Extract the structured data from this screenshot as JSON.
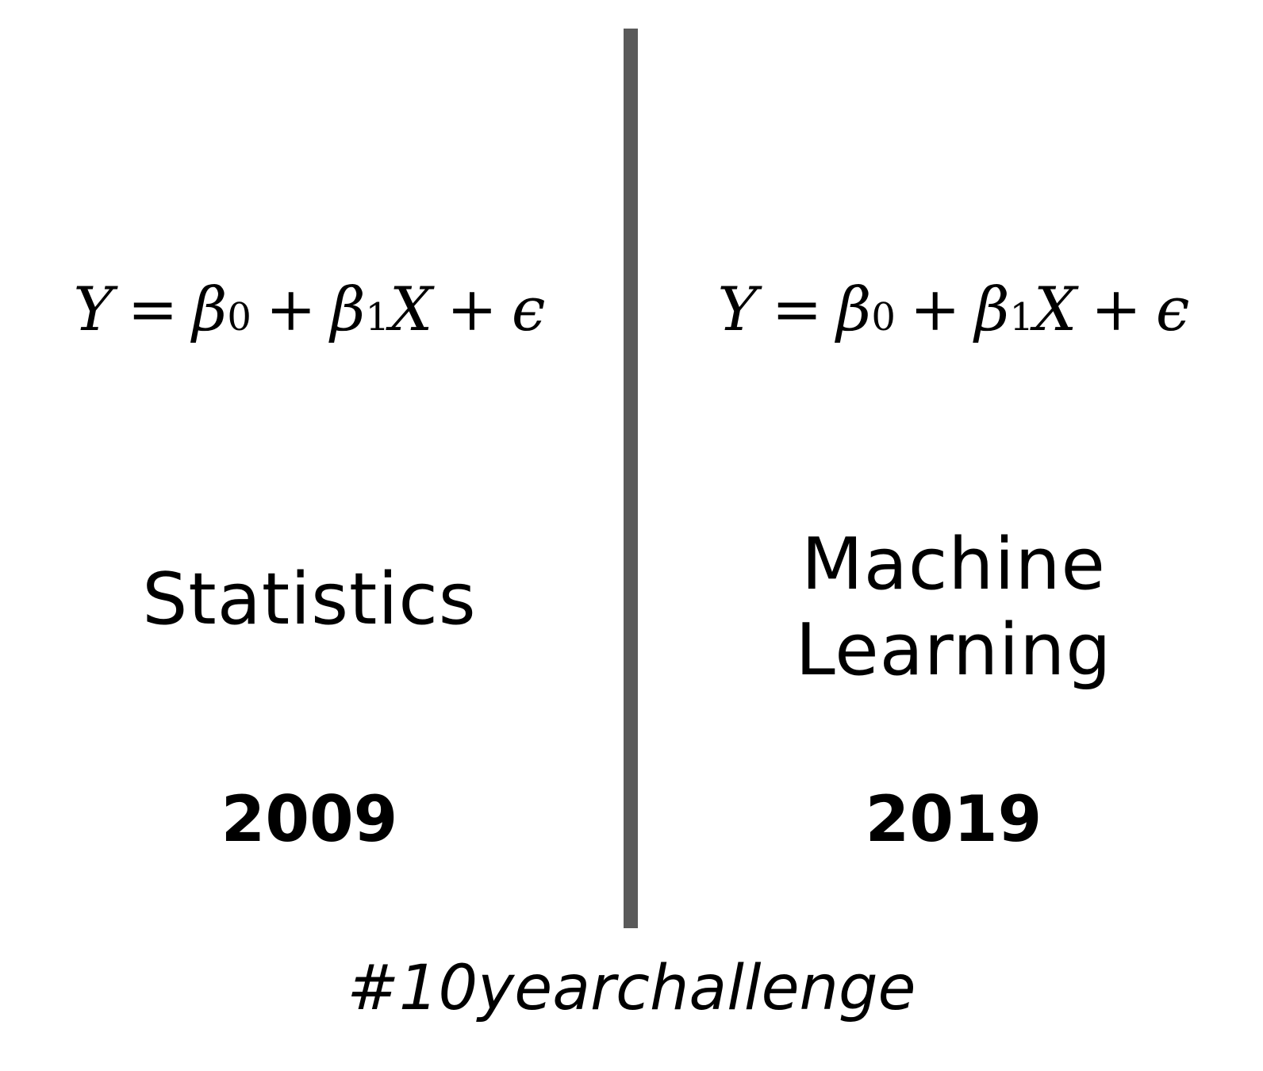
{
  "left": {
    "equation": {
      "y": "Y",
      "eq": "=",
      "beta": "β",
      "sub0": "0",
      "plus1": "+",
      "sub1": "1",
      "x": "X",
      "plus2": "+",
      "eps": "ϵ"
    },
    "field": "Statistics",
    "year": "2009"
  },
  "right": {
    "equation": {
      "y": "Y",
      "eq": "=",
      "beta": "β",
      "sub0": "0",
      "plus1": "+",
      "sub1": "1",
      "x": "X",
      "plus2": "+",
      "eps": "ϵ"
    },
    "field_line1": "Machine",
    "field_line2": "Learning",
    "year": "2019"
  },
  "hashtag": "#10yearchallenge",
  "colors": {
    "divider": "#5a5a5a",
    "text": "#000000",
    "background": "#ffffff"
  }
}
